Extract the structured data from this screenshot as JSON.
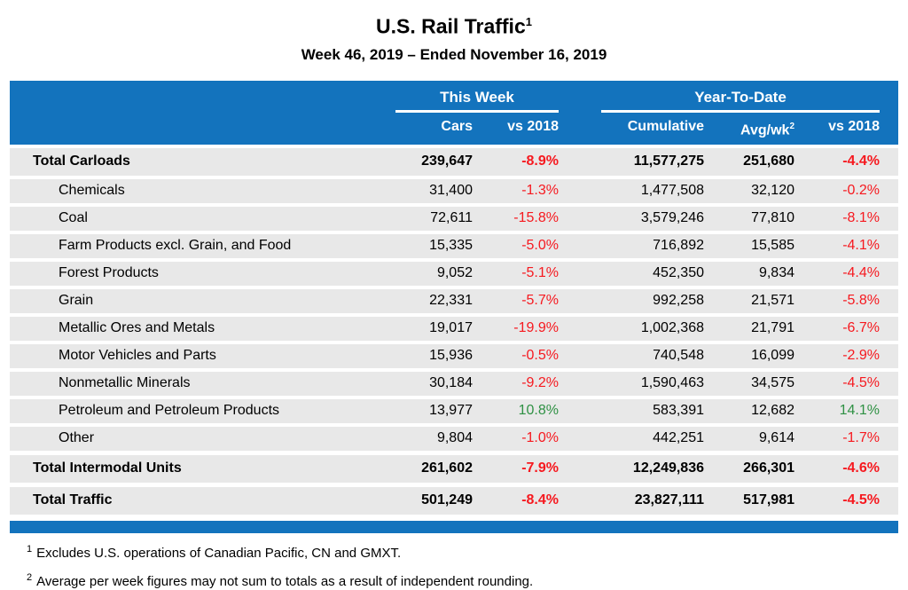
{
  "page": {
    "title": "U.S. Rail Traffic",
    "title_footnote_marker": "1",
    "subtitle": "Week 46, 2019 – Ended November 16, 2019"
  },
  "colors": {
    "header_blue": "#1373BD",
    "row_gray": "#E8E8E8",
    "negative_red": "#F6191F",
    "positive_green": "#2F9144"
  },
  "chart_data": {
    "type": "table",
    "title": "U.S. Rail Traffic",
    "subtitle": "Week 46, 2019 – Ended November 16, 2019",
    "column_groups": [
      {
        "label": "This Week",
        "columns": [
          "Cars",
          "vs 2018"
        ]
      },
      {
        "label": "Year-To-Date",
        "columns": [
          "Cumulative",
          "Avg/wk",
          "vs 2018"
        ]
      }
    ],
    "columns": {
      "cars": "Cars",
      "vs_2018_week": "vs 2018",
      "cumulative": "Cumulative",
      "avg_per_week": "Avg/wk",
      "avg_per_week_sup": "2",
      "vs_2018_ytd": "vs 2018"
    },
    "rows": [
      {
        "label": "Total Carloads",
        "is_total": true,
        "cars": "239,647",
        "vs_2018_week": "-8.9%",
        "cumulative": "11,577,275",
        "avg_per_week": "251,680",
        "vs_2018_ytd": "-4.4%"
      },
      {
        "label": "Chemicals",
        "is_total": false,
        "cars": "31,400",
        "vs_2018_week": "-1.3%",
        "cumulative": "1,477,508",
        "avg_per_week": "32,120",
        "vs_2018_ytd": "-0.2%"
      },
      {
        "label": "Coal",
        "is_total": false,
        "cars": "72,611",
        "vs_2018_week": "-15.8%",
        "cumulative": "3,579,246",
        "avg_per_week": "77,810",
        "vs_2018_ytd": "-8.1%"
      },
      {
        "label": "Farm Products excl. Grain, and Food",
        "is_total": false,
        "cars": "15,335",
        "vs_2018_week": "-5.0%",
        "cumulative": "716,892",
        "avg_per_week": "15,585",
        "vs_2018_ytd": "-4.1%"
      },
      {
        "label": "Forest Products",
        "is_total": false,
        "cars": "9,052",
        "vs_2018_week": "-5.1%",
        "cumulative": "452,350",
        "avg_per_week": "9,834",
        "vs_2018_ytd": "-4.4%"
      },
      {
        "label": "Grain",
        "is_total": false,
        "cars": "22,331",
        "vs_2018_week": "-5.7%",
        "cumulative": "992,258",
        "avg_per_week": "21,571",
        "vs_2018_ytd": "-5.8%"
      },
      {
        "label": "Metallic Ores and Metals",
        "is_total": false,
        "cars": "19,017",
        "vs_2018_week": "-19.9%",
        "cumulative": "1,002,368",
        "avg_per_week": "21,791",
        "vs_2018_ytd": "-6.7%"
      },
      {
        "label": "Motor Vehicles and Parts",
        "is_total": false,
        "cars": "15,936",
        "vs_2018_week": "-0.5%",
        "cumulative": "740,548",
        "avg_per_week": "16,099",
        "vs_2018_ytd": "-2.9%"
      },
      {
        "label": "Nonmetallic Minerals",
        "is_total": false,
        "cars": "30,184",
        "vs_2018_week": "-9.2%",
        "cumulative": "1,590,463",
        "avg_per_week": "34,575",
        "vs_2018_ytd": "-4.5%"
      },
      {
        "label": "Petroleum and Petroleum Products",
        "is_total": false,
        "cars": "13,977",
        "vs_2018_week": "10.8%",
        "cumulative": "583,391",
        "avg_per_week": "12,682",
        "vs_2018_ytd": "14.1%"
      },
      {
        "label": "Other",
        "is_total": false,
        "cars": "9,804",
        "vs_2018_week": "-1.0%",
        "cumulative": "442,251",
        "avg_per_week": "9,614",
        "vs_2018_ytd": "-1.7%"
      },
      {
        "label": "Total Intermodal Units",
        "is_total": true,
        "cars": "261,602",
        "vs_2018_week": "-7.9%",
        "cumulative": "12,249,836",
        "avg_per_week": "266,301",
        "vs_2018_ytd": "-4.6%"
      },
      {
        "label": "Total Traffic",
        "is_total": true,
        "cars": "501,249",
        "vs_2018_week": "-8.4%",
        "cumulative": "23,827,111",
        "avg_per_week": "517,981",
        "vs_2018_ytd": "-4.5%"
      }
    ]
  },
  "footnotes": [
    {
      "marker": "1",
      "text": "Excludes U.S. operations of Canadian Pacific, CN and GMXT."
    },
    {
      "marker": "2",
      "text": "Average per week figures may not sum to totals as a result of independent rounding."
    }
  ]
}
